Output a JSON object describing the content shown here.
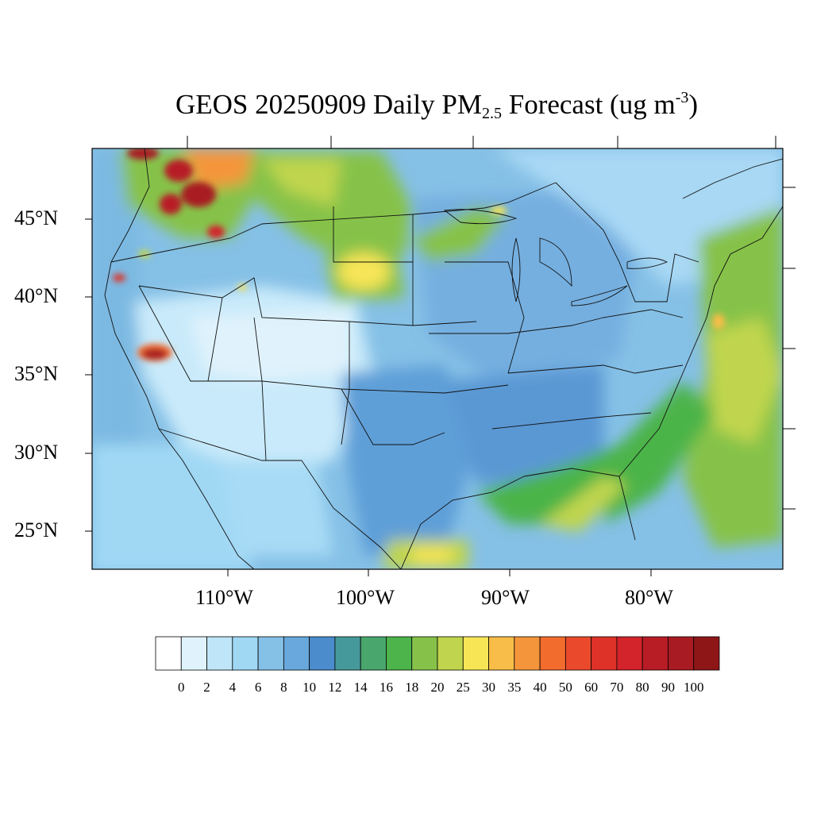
{
  "title": {
    "prefix": "GEOS 20250909 Daily PM",
    "subscript": "2.5",
    "middle": " Forecast (ug m",
    "superscript": "-3",
    "suffix": ")"
  },
  "map": {
    "region": "Contiguous United States",
    "projection": "lat-lon",
    "lat_labels": [
      "45°N",
      "40°N",
      "35°N",
      "30°N",
      "25°N"
    ],
    "lon_labels": [
      "110°W",
      "100°W",
      "90°W",
      "80°W"
    ],
    "lat_range": [
      22.6,
      49.5
    ],
    "lon_range": [
      -119.6,
      -71.0
    ],
    "hotspots": [
      {
        "name": "Pacific Northwest smoke",
        "level": "90-100"
      },
      {
        "name": "Northern Rockies smoke",
        "level": "60-100"
      },
      {
        "name": "Southern California fire",
        "level": "80-100"
      },
      {
        "name": "Nebraska-South Dakota plume",
        "level": "20-30"
      },
      {
        "name": "Gulf / Atlantic coastal band",
        "level": "16-30"
      }
    ]
  },
  "colorbar": {
    "labels": [
      "0",
      "2",
      "4",
      "6",
      "8",
      "10",
      "12",
      "14",
      "16",
      "18",
      "20",
      "25",
      "30",
      "35",
      "40",
      "50",
      "60",
      "70",
      "80",
      "90",
      "100"
    ],
    "colors": [
      "#ffffff",
      "#e0f3fc",
      "#bfe6f8",
      "#a0d8f4",
      "#85c0e6",
      "#68a8dc",
      "#4a8ccc",
      "#46999a",
      "#49a66c",
      "#4cb44a",
      "#86c24a",
      "#c0d54d",
      "#f7e556",
      "#f8bd48",
      "#f5953b",
      "#f26c2d",
      "#ea4a2b",
      "#de3228",
      "#d3232b",
      "#b81c25",
      "#a81b22",
      "#8e1617"
    ]
  }
}
